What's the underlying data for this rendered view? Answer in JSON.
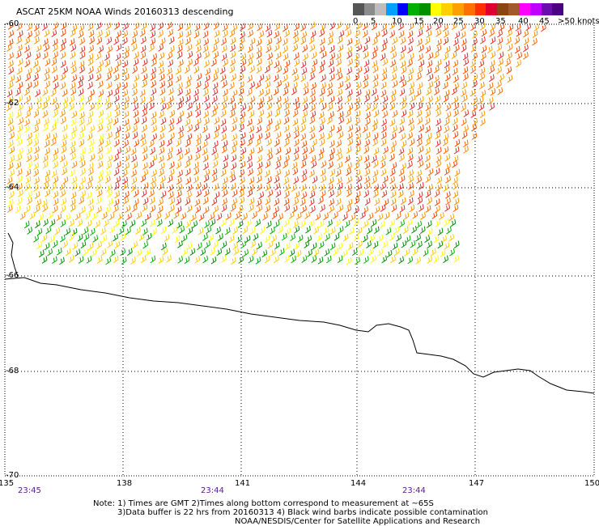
{
  "title": "ASCAT 25KM NOAA Winds 20160313 descending",
  "legend": {
    "ticks": [
      "0",
      "5",
      "10",
      "15",
      "20",
      "25",
      "30",
      "35",
      "40",
      "45"
    ],
    "units": ">50 knots",
    "colors": [
      "#555555",
      "#8c8c8c",
      "#bdbdbd",
      "#00a0ff",
      "#0000ff",
      "#00b000",
      "#009000",
      "#ffff00",
      "#ffd000",
      "#ffa000",
      "#ff7000",
      "#ff3000",
      "#e00030",
      "#8b4513",
      "#a05a2c",
      "#ff00ff",
      "#c000ff",
      "#6a0dad",
      "#4b0082"
    ]
  },
  "axes": {
    "lon_labels": [
      "135",
      "138",
      "141",
      "144",
      "147",
      "150"
    ],
    "lat_labels": [
      "-60",
      "-62",
      "-64",
      "-66",
      "-68",
      "-70"
    ]
  },
  "times": [
    "23:45",
    "23:44",
    "23:44"
  ],
  "notes": [
    "Note: 1) Times are GMT 2)Times along bottom correspond to measurement at ~65S",
    "3)Data buffer is 22 hrs from 20160313 4) Black wind barbs indicate possible contamination",
    "NOAA/NESDIS/Center for Satellite Applications and Research"
  ],
  "coastline_label": "Antarctic coastline",
  "wind_field": {
    "bands": [
      {
        "name": "north",
        "colors": [
          "#ff8c00",
          "#ff6a00",
          "#ff4500",
          "#e0302a",
          "#ffa000"
        ]
      },
      {
        "name": "west",
        "colors": [
          "#ffd000",
          "#ffa000",
          "#ffff00",
          "#ff8c00"
        ]
      },
      {
        "name": "south",
        "colors": [
          "#ffff00",
          "#ffd000",
          "#00b000",
          "#009000"
        ]
      }
    ]
  }
}
